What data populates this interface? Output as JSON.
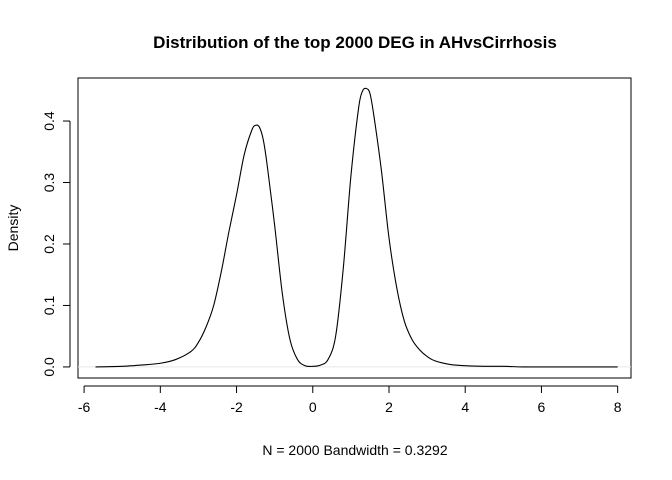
{
  "chart_data": {
    "type": "line",
    "title": "Distribution of the top 2000 DEG in AHvsCirrhosis",
    "xlabel": "N = 2000   Bandwidth = 0.3292",
    "ylabel": "Density",
    "xlim": [
      -6.16,
      8.35
    ],
    "ylim": [
      -0.018,
      0.47
    ],
    "x_ticks": [
      -6,
      -4,
      -2,
      0,
      2,
      4,
      6,
      8
    ],
    "x_tick_labels": [
      "-6",
      "-4",
      "-2",
      "0",
      "2",
      "4",
      "6",
      "8"
    ],
    "y_ticks": [
      0.0,
      0.1,
      0.2,
      0.3,
      0.4
    ],
    "y_tick_labels": [
      "0.0",
      "0.1",
      "0.2",
      "0.3",
      "0.4"
    ],
    "grid": false,
    "baseline_y": 0,
    "series": [
      {
        "x": [
          -5.7,
          -5.0,
          -4.5,
          -4.0,
          -3.6,
          -3.2,
          -3.0,
          -2.8,
          -2.6,
          -2.4,
          -2.2,
          -2.0,
          -1.8,
          -1.6,
          -1.5,
          -1.4,
          -1.3,
          -1.2,
          -1.0,
          -0.8,
          -0.6,
          -0.4,
          -0.2,
          0.0,
          0.2,
          0.4,
          0.6,
          0.8,
          1.0,
          1.2,
          1.3,
          1.4,
          1.5,
          1.6,
          1.8,
          2.0,
          2.2,
          2.4,
          2.6,
          2.8,
          3.0,
          3.2,
          3.6,
          4.0,
          4.5,
          5.0,
          5.5,
          6.0,
          6.5,
          7.0,
          7.5,
          8.0
        ],
        "y": [
          0.0,
          0.001,
          0.003,
          0.006,
          0.012,
          0.025,
          0.04,
          0.065,
          0.1,
          0.155,
          0.22,
          0.28,
          0.345,
          0.385,
          0.393,
          0.39,
          0.37,
          0.33,
          0.23,
          0.12,
          0.045,
          0.012,
          0.002,
          0.001,
          0.003,
          0.012,
          0.05,
          0.16,
          0.31,
          0.42,
          0.448,
          0.453,
          0.445,
          0.41,
          0.32,
          0.21,
          0.13,
          0.075,
          0.045,
          0.028,
          0.017,
          0.01,
          0.004,
          0.002,
          0.001,
          0.001,
          0.0,
          0.0,
          0.0,
          0.0,
          0.0,
          0.0
        ]
      }
    ]
  }
}
